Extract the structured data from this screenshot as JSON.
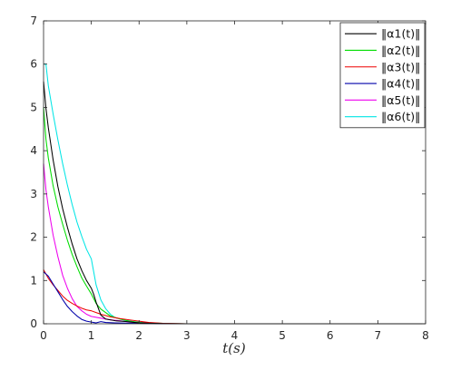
{
  "chart_data": {
    "type": "line",
    "title": "",
    "xlabel": "t(s)",
    "ylabel": "",
    "xlim": [
      0,
      8
    ],
    "ylim": [
      0,
      7
    ],
    "xticks": [
      0,
      1,
      2,
      3,
      4,
      5,
      6,
      7,
      8
    ],
    "yticks": [
      0,
      1,
      2,
      3,
      4,
      5,
      6,
      7
    ],
    "xtick_labels": [
      "0",
      "1",
      "2",
      "3",
      "4",
      "5",
      "6",
      "7",
      "8"
    ],
    "ytick_labels": [
      "0",
      "1",
      "2",
      "3",
      "4",
      "5",
      "6",
      "7"
    ],
    "grid": false,
    "legend_position": "top-right",
    "series": [
      {
        "name": "‖α1(t)‖",
        "color": "#000000",
        "points": [
          [
            0,
            5.6
          ],
          [
            0.05,
            4.98
          ],
          [
            0.1,
            4.53
          ],
          [
            0.2,
            3.79
          ],
          [
            0.3,
            3.17
          ],
          [
            0.4,
            2.66
          ],
          [
            0.5,
            2.23
          ],
          [
            0.6,
            1.84
          ],
          [
            0.7,
            1.5
          ],
          [
            0.8,
            1.23
          ],
          [
            0.9,
            1.0
          ],
          [
            1.0,
            0.82
          ],
          [
            1.05,
            0.68
          ],
          [
            1.1,
            0.5
          ],
          [
            1.2,
            0.2
          ],
          [
            1.3,
            0.11
          ],
          [
            1.5,
            0.07
          ],
          [
            1.75,
            0.05
          ],
          [
            2.0,
            0.02
          ],
          [
            2.5,
            0.005
          ],
          [
            3,
            0
          ],
          [
            8,
            0
          ]
        ]
      },
      {
        "name": "‖α2(t)‖",
        "color": "#00dd00",
        "points": [
          [
            0,
            5.0
          ],
          [
            0.05,
            4.27
          ],
          [
            0.1,
            3.83
          ],
          [
            0.2,
            3.19
          ],
          [
            0.3,
            2.7
          ],
          [
            0.4,
            2.3
          ],
          [
            0.5,
            1.93
          ],
          [
            0.6,
            1.6
          ],
          [
            0.7,
            1.32
          ],
          [
            0.8,
            1.06
          ],
          [
            0.9,
            0.87
          ],
          [
            1.0,
            0.69
          ],
          [
            1.1,
            0.47
          ],
          [
            1.2,
            0.34
          ],
          [
            1.4,
            0.18
          ],
          [
            1.6,
            0.11
          ],
          [
            1.8,
            0.06
          ],
          [
            2.0,
            0.03
          ],
          [
            2.5,
            0.01
          ],
          [
            3,
            0
          ],
          [
            8,
            0
          ]
        ]
      },
      {
        "name": "‖α3(t)‖",
        "color": "#ee0000",
        "points": [
          [
            0,
            1.25
          ],
          [
            0.1,
            1.05
          ],
          [
            0.2,
            0.9
          ],
          [
            0.3,
            0.77
          ],
          [
            0.4,
            0.64
          ],
          [
            0.5,
            0.54
          ],
          [
            0.6,
            0.47
          ],
          [
            0.7,
            0.41
          ],
          [
            0.8,
            0.36
          ],
          [
            0.9,
            0.32
          ],
          [
            1.0,
            0.3
          ],
          [
            1.1,
            0.26
          ],
          [
            1.2,
            0.22
          ],
          [
            1.4,
            0.16
          ],
          [
            1.6,
            0.12
          ],
          [
            1.8,
            0.09
          ],
          [
            2.0,
            0.06
          ],
          [
            2.2,
            0.03
          ],
          [
            2.5,
            0.01
          ],
          [
            3,
            0
          ],
          [
            8,
            0
          ]
        ]
      },
      {
        "name": "‖α4(t)‖",
        "color": "#0000aa",
        "points": [
          [
            0,
            1.2
          ],
          [
            0.1,
            1.1
          ],
          [
            0.2,
            0.92
          ],
          [
            0.3,
            0.74
          ],
          [
            0.4,
            0.56
          ],
          [
            0.5,
            0.4
          ],
          [
            0.6,
            0.28
          ],
          [
            0.7,
            0.18
          ],
          [
            0.8,
            0.1
          ],
          [
            0.9,
            0.06
          ],
          [
            1.0,
            0.04
          ],
          [
            1.1,
            0.02
          ],
          [
            1.2,
            0.05
          ],
          [
            1.3,
            0.03
          ],
          [
            1.5,
            0.02
          ],
          [
            2.0,
            0.01
          ],
          [
            2.5,
            0
          ],
          [
            8,
            0
          ]
        ]
      },
      {
        "name": "‖α5(t)‖",
        "color": "#ee00ee",
        "points": [
          [
            0,
            3.7
          ],
          [
            0.05,
            3.1
          ],
          [
            0.1,
            2.7
          ],
          [
            0.2,
            2.05
          ],
          [
            0.3,
            1.55
          ],
          [
            0.4,
            1.12
          ],
          [
            0.5,
            0.82
          ],
          [
            0.6,
            0.58
          ],
          [
            0.7,
            0.4
          ],
          [
            0.8,
            0.3
          ],
          [
            0.9,
            0.22
          ],
          [
            1.0,
            0.17
          ],
          [
            1.2,
            0.13
          ],
          [
            1.4,
            0.09
          ],
          [
            1.6,
            0.07
          ],
          [
            1.8,
            0.04
          ],
          [
            2.0,
            0.02
          ],
          [
            2.5,
            0.005
          ],
          [
            3,
            0
          ],
          [
            8,
            0
          ]
        ]
      },
      {
        "name": "‖α6(t)‖",
        "color": "#00e5e5",
        "points": [
          [
            0,
            6.0
          ],
          [
            0.05,
            6.0
          ],
          [
            0.1,
            5.5
          ],
          [
            0.2,
            4.85
          ],
          [
            0.3,
            4.25
          ],
          [
            0.4,
            3.7
          ],
          [
            0.5,
            3.2
          ],
          [
            0.6,
            2.75
          ],
          [
            0.7,
            2.35
          ],
          [
            0.8,
            2.02
          ],
          [
            0.9,
            1.72
          ],
          [
            1.0,
            1.5
          ],
          [
            1.05,
            1.2
          ],
          [
            1.1,
            0.9
          ],
          [
            1.2,
            0.55
          ],
          [
            1.3,
            0.35
          ],
          [
            1.4,
            0.22
          ],
          [
            1.5,
            0.14
          ],
          [
            1.7,
            0.08
          ],
          [
            1.9,
            0.05
          ],
          [
            2.2,
            0.02
          ],
          [
            2.5,
            0
          ],
          [
            8,
            0
          ]
        ]
      }
    ]
  }
}
